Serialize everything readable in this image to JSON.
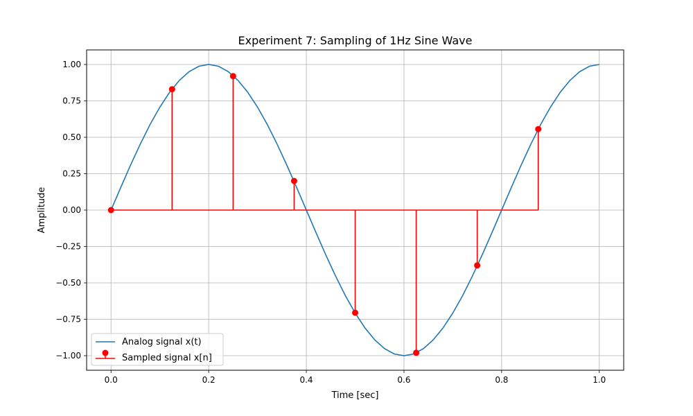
{
  "chart_data": {
    "type": "line",
    "title": "Experiment 7: Sampling of 1Hz Sine Wave",
    "xlabel": "Time [sec]",
    "ylabel": "Amplitude",
    "xlim": [
      -0.05,
      1.05
    ],
    "ylim": [
      -1.1,
      1.1
    ],
    "xticks": [
      0.0,
      0.2,
      0.4,
      0.6,
      0.8,
      1.0
    ],
    "xtick_labels": [
      "0.0",
      "0.2",
      "0.4",
      "0.6",
      "0.8",
      "1.0"
    ],
    "yticks": [
      1.0,
      0.75,
      0.5,
      0.25,
      0.0,
      -0.25,
      -0.5,
      -0.75,
      -1.0
    ],
    "ytick_labels": [
      "1.00",
      "0.75",
      "0.50",
      "0.25",
      "0.00",
      "−0.25",
      "−0.50",
      "−0.75",
      "−1.00"
    ],
    "grid": true,
    "legend_position": "lower-left",
    "series": [
      {
        "name": "Analog signal x(t)",
        "kind": "line",
        "color": "#1f77b4",
        "x": [
          0.0,
          0.02,
          0.04,
          0.06,
          0.08,
          0.1,
          0.12,
          0.14,
          0.16,
          0.18,
          0.2,
          0.22,
          0.24,
          0.26,
          0.28,
          0.3,
          0.32,
          0.34,
          0.36,
          0.38,
          0.4,
          0.42,
          0.44,
          0.46,
          0.48,
          0.5,
          0.52,
          0.54,
          0.56,
          0.58,
          0.6,
          0.62,
          0.64,
          0.66,
          0.68,
          0.7,
          0.72,
          0.74,
          0.76,
          0.78,
          0.8,
          0.82,
          0.84,
          0.86,
          0.88,
          0.9,
          0.92,
          0.94,
          0.96,
          0.98,
          1.0
        ],
        "y": [
          0.0,
          0.156,
          0.309,
          0.454,
          0.588,
          0.707,
          0.809,
          0.891,
          0.951,
          0.988,
          1.0,
          0.988,
          0.951,
          0.891,
          0.809,
          0.707,
          0.588,
          0.454,
          0.309,
          0.156,
          0.0,
          -0.156,
          -0.309,
          -0.454,
          -0.588,
          -0.707,
          -0.809,
          -0.891,
          -0.951,
          -0.988,
          -1.0,
          -0.988,
          -0.951,
          -0.891,
          -0.809,
          -0.707,
          -0.588,
          -0.454,
          -0.309,
          -0.156,
          0.0,
          0.156,
          0.309,
          0.454,
          0.588,
          0.707,
          0.809,
          0.891,
          0.951,
          0.988,
          1.0
        ]
      },
      {
        "name": "Sampled signal x[n]",
        "kind": "stem",
        "color": "#ff0000",
        "x": [
          0.0,
          0.125,
          0.25,
          0.375,
          0.5,
          0.625,
          0.75,
          0.875
        ],
        "y": [
          0.0,
          0.83,
          0.92,
          0.2,
          -0.705,
          -0.98,
          -0.38,
          0.556
        ]
      }
    ]
  }
}
